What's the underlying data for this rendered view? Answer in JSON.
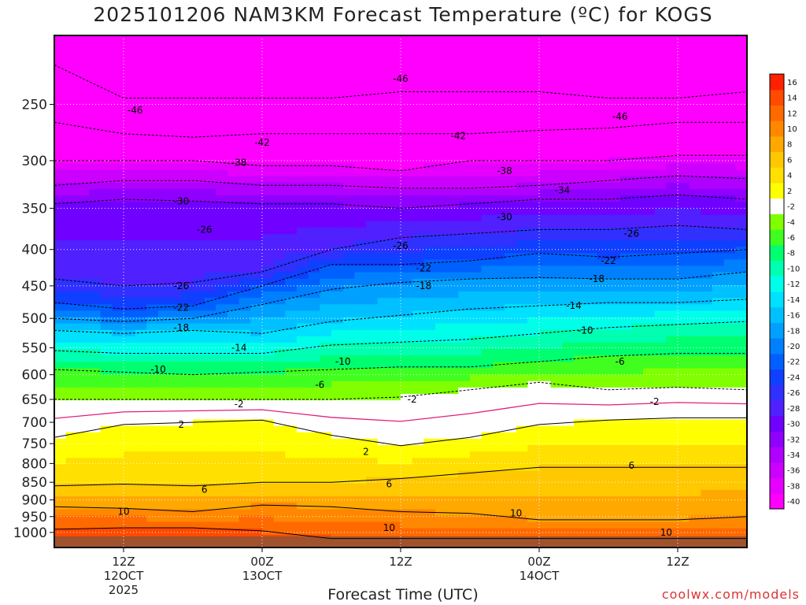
{
  "title": "2025101206 NAM3KM Forecast Temperature (ºC) for KOGS",
  "xlabel": "Forecast Time (UTC)",
  "credit": "coolwx.com/models",
  "chart_data": {
    "type": "heatmap",
    "title": "2025101206 NAM3KM Forecast Temperature (ºC) for KOGS",
    "xlabel": "Forecast Time (UTC)",
    "ylabel": "",
    "y_axis": "pressure (hPa), log scale, inverted",
    "ylim": [
      1050,
      200
    ],
    "y_ticks": [
      250,
      300,
      350,
      400,
      450,
      500,
      550,
      600,
      650,
      700,
      750,
      800,
      850,
      900,
      950,
      1000
    ],
    "x_ticks": [
      {
        "hour": 6,
        "label": "12Z",
        "sub1": "12OCT",
        "sub2": "2025"
      },
      {
        "hour": 18,
        "label": "00Z",
        "sub1": "13OCT",
        "sub2": ""
      },
      {
        "hour": 30,
        "label": "12Z",
        "sub1": "",
        "sub2": ""
      },
      {
        "hour": 42,
        "label": "00Z",
        "sub1": "14OCT",
        "sub2": ""
      },
      {
        "hour": 54,
        "label": "12Z",
        "sub1": "",
        "sub2": ""
      }
    ],
    "xlim": [
      0,
      60
    ],
    "grid": true,
    "colorbar": {
      "levels": [
        -40,
        -38,
        -36,
        -34,
        -32,
        -30,
        -28,
        -26,
        -24,
        -22,
        -20,
        -18,
        -16,
        -14,
        -12,
        -10,
        -8,
        -6,
        -4,
        -2,
        2,
        4,
        6,
        8,
        10,
        12,
        14,
        16
      ],
      "colors": [
        "#ff00ff",
        "#e600ff",
        "#cc00ff",
        "#b000ff",
        "#9000ff",
        "#7000ff",
        "#5020ff",
        "#3030ff",
        "#1040ff",
        "#0060ff",
        "#0080ff",
        "#00a0ff",
        "#00c0ff",
        "#00e0ff",
        "#00ffe8",
        "#00ffb0",
        "#00ff70",
        "#40ff20",
        "#80ff00",
        "#ffffff",
        "#ffff00",
        "#ffe000",
        "#ffc800",
        "#ffa800",
        "#ff8800",
        "#ff6a00",
        "#ff4a00",
        "#ff2000"
      ]
    },
    "isotherm_profiles": [
      {
        "hour": 0,
        "points": [
          [
            -46,
            220
          ],
          [
            -42,
            265
          ],
          [
            -38,
            300
          ],
          [
            -34,
            325
          ],
          [
            -30,
            345
          ],
          [
            -26,
            440
          ],
          [
            -22,
            475
          ],
          [
            -18,
            500
          ],
          [
            -14,
            520
          ],
          [
            -10,
            555
          ],
          [
            -6,
            590
          ],
          [
            -2,
            650
          ],
          [
            2,
            735
          ],
          [
            6,
            860
          ],
          [
            10,
            920
          ],
          [
            14,
            990
          ]
        ]
      },
      {
        "hour": 6,
        "points": [
          [
            -46,
            245
          ],
          [
            -42,
            275
          ],
          [
            -38,
            300
          ],
          [
            -34,
            320
          ],
          [
            -30,
            340
          ],
          [
            -26,
            450
          ],
          [
            -22,
            485
          ],
          [
            -18,
            505
          ],
          [
            -14,
            525
          ],
          [
            -10,
            560
          ],
          [
            -6,
            595
          ],
          [
            -2,
            650
          ],
          [
            2,
            705
          ],
          [
            6,
            855
          ],
          [
            10,
            925
          ],
          [
            14,
            985
          ]
        ]
      },
      {
        "hour": 12,
        "points": [
          [
            -46,
            245
          ],
          [
            -42,
            278
          ],
          [
            -38,
            300
          ],
          [
            -34,
            320
          ],
          [
            -30,
            342
          ],
          [
            -26,
            445
          ],
          [
            -22,
            480
          ],
          [
            -18,
            500
          ],
          [
            -14,
            520
          ],
          [
            -10,
            560
          ],
          [
            -6,
            600
          ],
          [
            -2,
            650
          ],
          [
            2,
            700
          ],
          [
            6,
            860
          ],
          [
            10,
            935
          ],
          [
            14,
            985
          ]
        ]
      },
      {
        "hour": 18,
        "points": [
          [
            -46,
            245
          ],
          [
            -42,
            275
          ],
          [
            -38,
            305
          ],
          [
            -34,
            325
          ],
          [
            -30,
            345
          ],
          [
            -26,
            430
          ],
          [
            -22,
            450
          ],
          [
            -18,
            478
          ],
          [
            -14,
            525
          ],
          [
            -10,
            560
          ],
          [
            -6,
            595
          ],
          [
            -2,
            650
          ],
          [
            2,
            695
          ],
          [
            6,
            850
          ],
          [
            10,
            915
          ],
          [
            14,
            995
          ]
        ]
      },
      {
        "hour": 24,
        "points": [
          [
            -46,
            245
          ],
          [
            -42,
            275
          ],
          [
            -38,
            305
          ],
          [
            -34,
            325
          ],
          [
            -30,
            345
          ],
          [
            -26,
            400
          ],
          [
            -22,
            420
          ],
          [
            -18,
            455
          ],
          [
            -14,
            505
          ],
          [
            -10,
            545
          ],
          [
            -6,
            590
          ],
          [
            -2,
            650
          ],
          [
            2,
            730
          ],
          [
            6,
            850
          ],
          [
            10,
            920
          ],
          [
            14,
            1020
          ]
        ]
      },
      {
        "hour": 30,
        "points": [
          [
            -46,
            240
          ],
          [
            -42,
            275
          ],
          [
            -38,
            310
          ],
          [
            -34,
            328
          ],
          [
            -30,
            350
          ],
          [
            -26,
            385
          ],
          [
            -22,
            420
          ],
          [
            -18,
            445
          ],
          [
            -14,
            495
          ],
          [
            -10,
            540
          ],
          [
            -6,
            585
          ],
          [
            -2,
            645
          ],
          [
            2,
            755
          ],
          [
            6,
            840
          ],
          [
            10,
            935
          ],
          [
            14,
            1020
          ]
        ]
      },
      {
        "hour": 36,
        "points": [
          [
            -46,
            240
          ],
          [
            -42,
            275
          ],
          [
            -38,
            300
          ],
          [
            -34,
            328
          ],
          [
            -30,
            345
          ],
          [
            -26,
            380
          ],
          [
            -22,
            415
          ],
          [
            -18,
            440
          ],
          [
            -14,
            485
          ],
          [
            -10,
            535
          ],
          [
            -6,
            585
          ],
          [
            -2,
            630
          ],
          [
            2,
            735
          ],
          [
            6,
            825
          ],
          [
            10,
            940
          ],
          [
            14,
            1020
          ]
        ]
      },
      {
        "hour": 42,
        "points": [
          [
            -46,
            240
          ],
          [
            -42,
            272
          ],
          [
            -38,
            300
          ],
          [
            -34,
            325
          ],
          [
            -30,
            340
          ],
          [
            -26,
            375
          ],
          [
            -22,
            405
          ],
          [
            -18,
            438
          ],
          [
            -14,
            480
          ],
          [
            -10,
            525
          ],
          [
            -6,
            575
          ],
          [
            -2,
            615
          ],
          [
            2,
            705
          ],
          [
            6,
            810
          ],
          [
            10,
            960
          ],
          [
            14,
            1020
          ]
        ]
      },
      {
        "hour": 48,
        "points": [
          [
            -46,
            245
          ],
          [
            -42,
            270
          ],
          [
            -38,
            300
          ],
          [
            -34,
            320
          ],
          [
            -30,
            340
          ],
          [
            -26,
            375
          ],
          [
            -22,
            410
          ],
          [
            -18,
            440
          ],
          [
            -14,
            475
          ],
          [
            -10,
            515
          ],
          [
            -6,
            565
          ],
          [
            -2,
            630
          ],
          [
            2,
            695
          ],
          [
            6,
            810
          ],
          [
            10,
            960
          ],
          [
            14,
            1020
          ]
        ]
      },
      {
        "hour": 54,
        "points": [
          [
            -46,
            245
          ],
          [
            -42,
            265
          ],
          [
            -38,
            295
          ],
          [
            -34,
            315
          ],
          [
            -30,
            335
          ],
          [
            -26,
            370
          ],
          [
            -22,
            405
          ],
          [
            -18,
            440
          ],
          [
            -14,
            475
          ],
          [
            -10,
            510
          ],
          [
            -6,
            560
          ],
          [
            -2,
            625
          ],
          [
            2,
            690
          ],
          [
            6,
            810
          ],
          [
            10,
            960
          ],
          [
            14,
            1020
          ]
        ]
      },
      {
        "hour": 60,
        "points": [
          [
            -46,
            240
          ],
          [
            -42,
            265
          ],
          [
            -38,
            295
          ],
          [
            -34,
            318
          ],
          [
            -30,
            340
          ],
          [
            -26,
            375
          ],
          [
            -22,
            400
          ],
          [
            -18,
            430
          ],
          [
            -14,
            470
          ],
          [
            -10,
            505
          ],
          [
            -6,
            560
          ],
          [
            -2,
            630
          ],
          [
            2,
            690
          ],
          [
            6,
            810
          ],
          [
            10,
            950
          ],
          [
            14,
            1020
          ]
        ]
      }
    ],
    "contour_labels": [
      {
        "text": "-46",
        "hour": 7,
        "p": 255
      },
      {
        "text": "-46",
        "hour": 30,
        "p": 230
      },
      {
        "text": "-46",
        "hour": 49,
        "p": 260
      },
      {
        "text": "-42",
        "hour": 18,
        "p": 283
      },
      {
        "text": "-42",
        "hour": 35,
        "p": 277
      },
      {
        "text": "-38",
        "hour": 16,
        "p": 302
      },
      {
        "text": "-38",
        "hour": 39,
        "p": 310
      },
      {
        "text": "-34",
        "hour": 44,
        "p": 330
      },
      {
        "text": "-30",
        "hour": 11,
        "p": 342
      },
      {
        "text": "-30",
        "hour": 39,
        "p": 360
      },
      {
        "text": "-26",
        "hour": 13,
        "p": 375
      },
      {
        "text": "-26",
        "hour": 30,
        "p": 395
      },
      {
        "text": "-26",
        "hour": 50,
        "p": 380
      },
      {
        "text": "-26",
        "hour": 11,
        "p": 450
      },
      {
        "text": "-22",
        "hour": 32,
        "p": 425
      },
      {
        "text": "-22",
        "hour": 48,
        "p": 415
      },
      {
        "text": "-22",
        "hour": 11,
        "p": 483
      },
      {
        "text": "-18",
        "hour": 32,
        "p": 450
      },
      {
        "text": "-18",
        "hour": 47,
        "p": 440
      },
      {
        "text": "-18",
        "hour": 11,
        "p": 515
      },
      {
        "text": "-14",
        "hour": 45,
        "p": 480
      },
      {
        "text": "-14",
        "hour": 16,
        "p": 550
      },
      {
        "text": "-10",
        "hour": 46,
        "p": 520
      },
      {
        "text": "-10",
        "hour": 25,
        "p": 575
      },
      {
        "text": "-10",
        "hour": 9,
        "p": 590
      },
      {
        "text": "-6",
        "hour": 49,
        "p": 575
      },
      {
        "text": "-6",
        "hour": 23,
        "p": 620
      },
      {
        "text": "-2",
        "hour": 16,
        "p": 660
      },
      {
        "text": "-2",
        "hour": 31,
        "p": 650
      },
      {
        "text": "-2",
        "hour": 52,
        "p": 655
      },
      {
        "text": "2",
        "hour": 11,
        "p": 705
      },
      {
        "text": "2",
        "hour": 27,
        "p": 770
      },
      {
        "text": "6",
        "hour": 13,
        "p": 870
      },
      {
        "text": "6",
        "hour": 29,
        "p": 855
      },
      {
        "text": "6",
        "hour": 50,
        "p": 805
      },
      {
        "text": "10",
        "hour": 6,
        "p": 935
      },
      {
        "text": "10",
        "hour": 29,
        "p": 985
      },
      {
        "text": "10",
        "hour": 40,
        "p": 940
      },
      {
        "text": "10",
        "hour": 53,
        "p": 1000
      }
    ],
    "surface_band_color": "#a0522d"
  }
}
